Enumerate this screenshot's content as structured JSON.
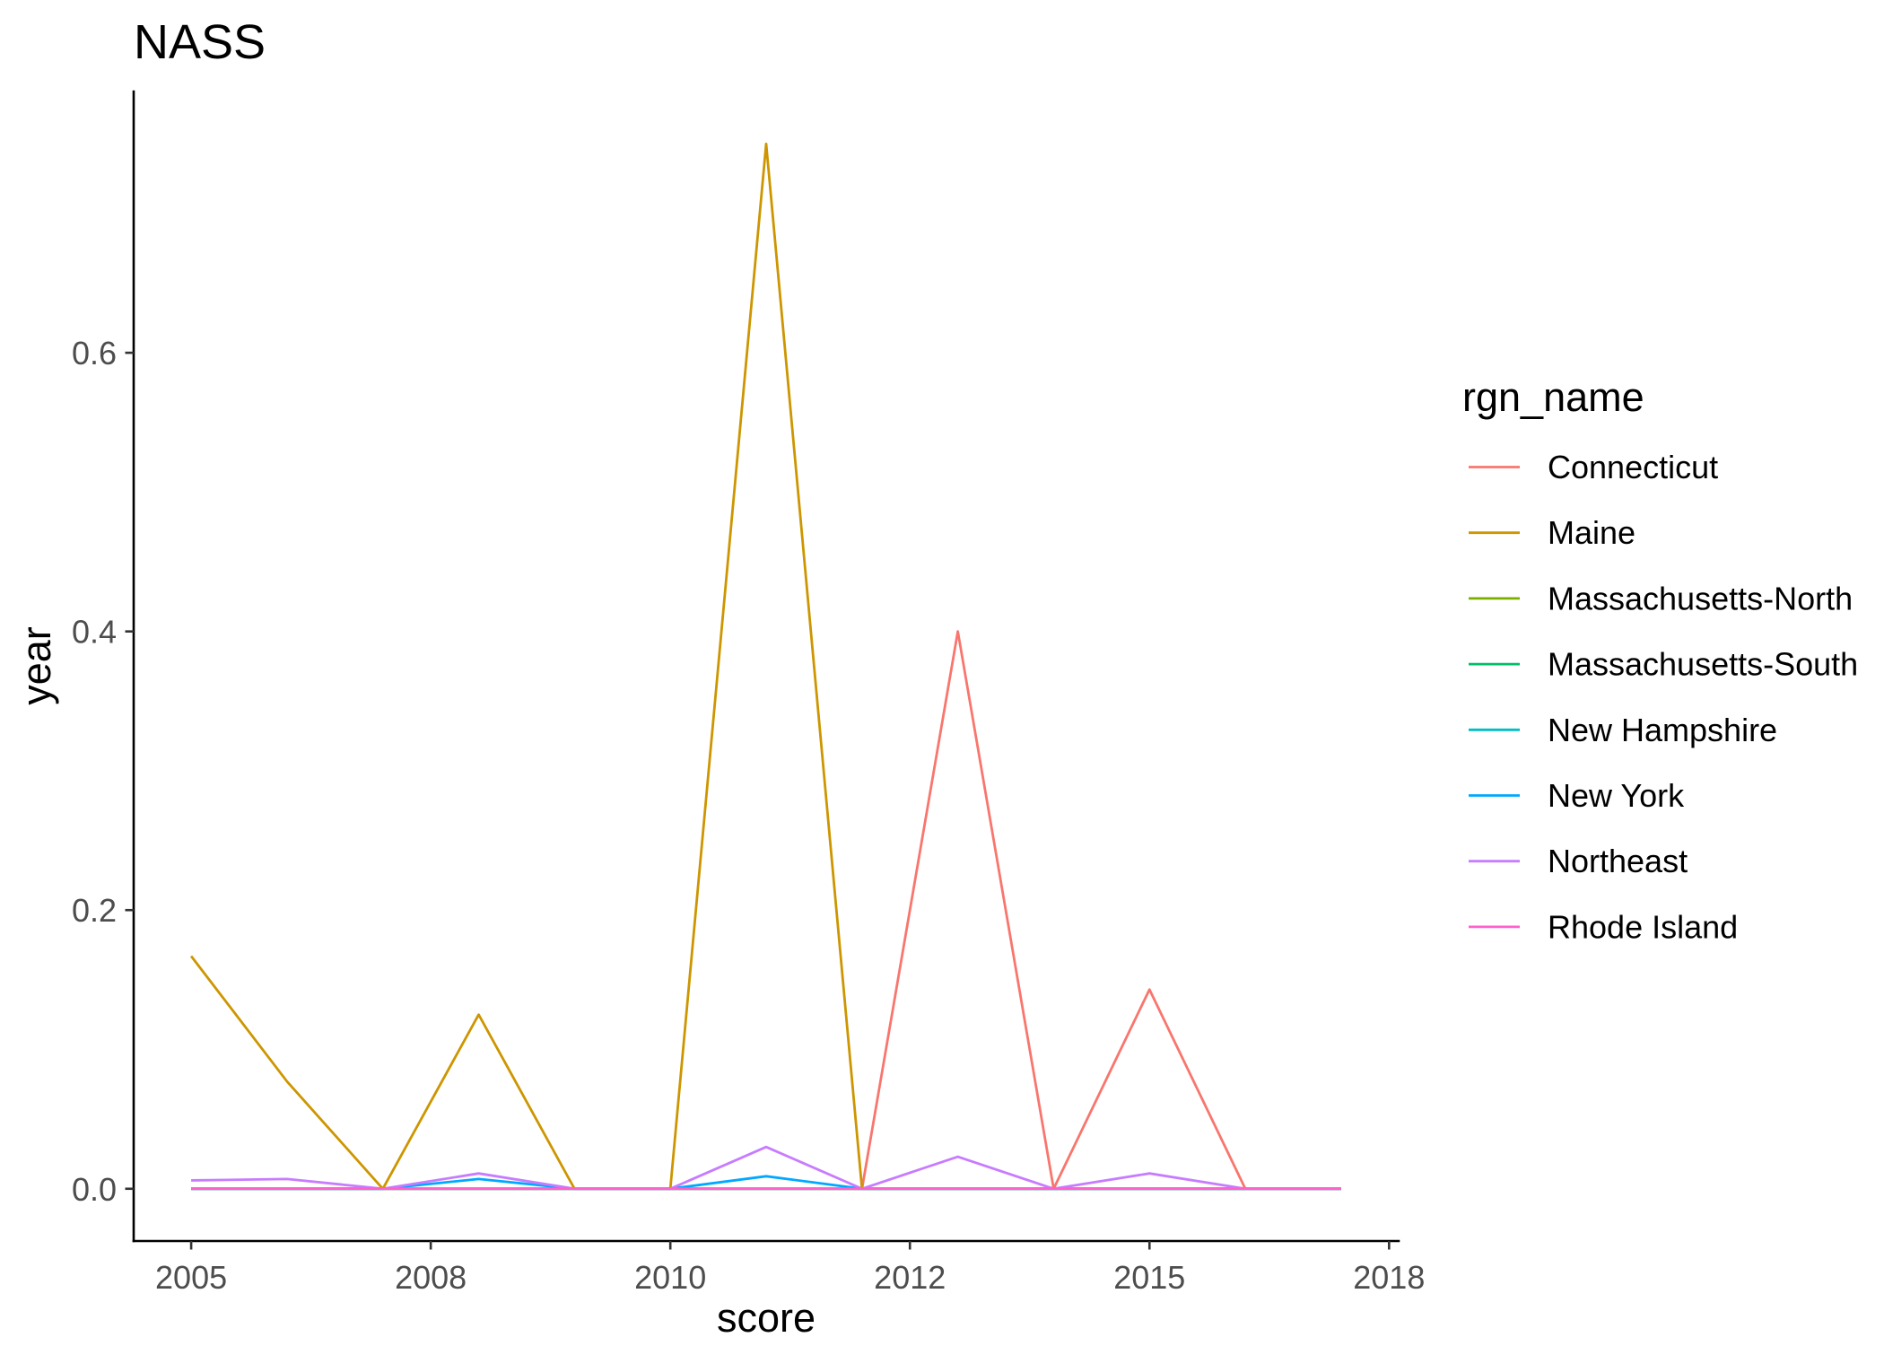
{
  "chart_data": {
    "type": "line",
    "title": "NASS",
    "xlabel": "score",
    "ylabel": "year",
    "x": [
      2005,
      2006,
      2007,
      2008,
      2009,
      2010,
      2011,
      2012,
      2013,
      2014,
      2015,
      2016,
      2017
    ],
    "xlim": [
      2004.4,
      2017.6
    ],
    "ylim": [
      -0.0375,
      0.7875
    ],
    "x_ticks": [
      2005,
      2007.5,
      2010,
      2012.5,
      2015,
      2017.5
    ],
    "x_tick_labels": [
      "2005",
      "2008",
      "2010",
      "2012",
      "2015",
      "2018"
    ],
    "y_ticks": [
      0,
      0.2,
      0.4,
      0.6
    ],
    "y_tick_labels": [
      "0.0",
      "0.2",
      "0.4",
      "0.6"
    ],
    "grid": false,
    "legend": {
      "title": "rgn_name",
      "position": "right"
    },
    "series": [
      {
        "name": "Connecticut",
        "color": "#F8766D",
        "values": [
          0,
          0,
          0,
          0,
          0,
          0,
          0,
          0,
          0.4,
          0,
          0.143,
          0,
          0
        ]
      },
      {
        "name": "Maine",
        "color": "#CD9600",
        "values": [
          0.167,
          0.077,
          0,
          0.125,
          0,
          0,
          0.75,
          0,
          0,
          0,
          0,
          0,
          0
        ]
      },
      {
        "name": "Massachusetts-North",
        "color": "#7CAE00",
        "values": [
          0,
          0,
          0,
          0,
          0,
          0,
          0,
          0,
          0,
          0,
          0,
          0,
          0
        ]
      },
      {
        "name": "Massachusetts-South",
        "color": "#00BE67",
        "values": [
          0,
          0,
          0,
          0,
          0,
          0,
          0,
          0,
          0,
          0,
          0,
          0,
          0
        ]
      },
      {
        "name": "New Hampshire",
        "color": "#00BFC4",
        "values": [
          0,
          0,
          0,
          0,
          0,
          0,
          0,
          0,
          0,
          0,
          0,
          0,
          0
        ]
      },
      {
        "name": "New York",
        "color": "#00A9FF",
        "values": [
          0,
          0,
          0,
          0.007,
          0,
          0,
          0.009,
          0,
          0,
          0,
          0,
          0,
          0
        ]
      },
      {
        "name": "Northeast",
        "color": "#C77CFF",
        "values": [
          0.006,
          0.007,
          0,
          0.011,
          0,
          0,
          0.03,
          0,
          0.023,
          0,
          0.011,
          0,
          0
        ]
      },
      {
        "name": "Rhode Island",
        "color": "#FF61CC",
        "values": [
          0,
          0,
          0,
          0,
          0,
          0,
          0,
          0,
          0,
          0,
          0,
          0,
          0
        ]
      }
    ]
  }
}
